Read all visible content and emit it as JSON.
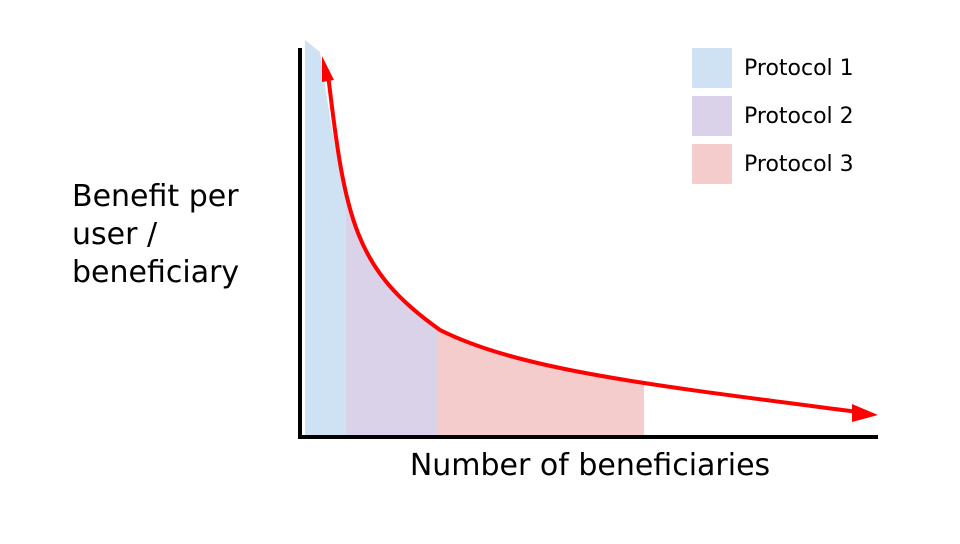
{
  "y_axis_label_lines": [
    "Benefit per",
    "user /",
    "beneficiary"
  ],
  "x_axis_label": "Number of beneficiaries",
  "legend": [
    {
      "label": "Protocol 1",
      "color": "#cfe2f3"
    },
    {
      "label": "Protocol 2",
      "color": "#d9d2e9"
    },
    {
      "label": "Protocol 3",
      "color": "#f4cccc"
    }
  ],
  "curve_color": "#ff0000",
  "axis_color": "#000000"
}
